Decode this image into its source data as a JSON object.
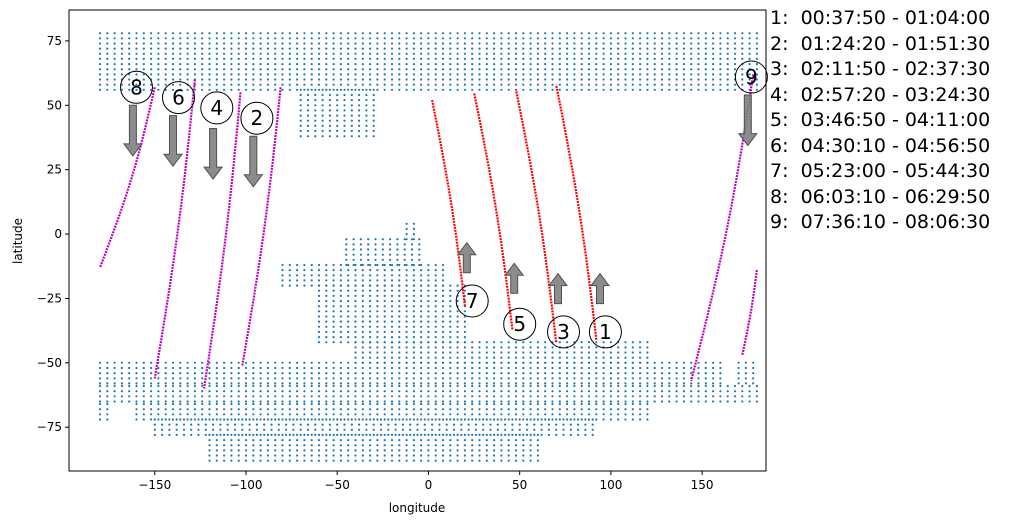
{
  "chart_data": {
    "type": "scatter",
    "title": "",
    "xlabel": "longitude",
    "ylabel": "latitude",
    "xlim": [
      -197,
      185
    ],
    "ylim": [
      -92,
      87
    ],
    "xticks": [
      -150,
      -100,
      -50,
      0,
      50,
      100,
      150
    ],
    "yticks": [
      -75,
      -50,
      -25,
      0,
      25,
      50,
      75
    ],
    "grid": false,
    "colors": {
      "land": "#1f77b4",
      "ascending": "#ff0000",
      "descending": "#c000c0",
      "arrow": "#808080"
    },
    "land_point_spacing_deg": [
      4,
      2
    ],
    "land_regions": [
      {
        "lat_range": [
          56,
          78
        ],
        "lon_spans": [
          [
            -180,
            180
          ]
        ]
      },
      {
        "lat_range": [
          38,
          56
        ],
        "lon_spans": [
          [
            -70,
            -30
          ]
        ]
      },
      {
        "lat_range": [
          -2,
          4
        ],
        "lon_spans": [
          [
            -12,
            -6
          ]
        ]
      },
      {
        "lat_range": [
          -12,
          -2
        ],
        "lon_spans": [
          [
            -45,
            -5
          ]
        ]
      },
      {
        "lat_range": [
          -20,
          -12
        ],
        "lon_spans": [
          [
            -80,
            10
          ]
        ]
      },
      {
        "lat_range": [
          -42,
          -20
        ],
        "lon_spans": [
          [
            -60,
            20
          ]
        ]
      },
      {
        "lat_range": [
          -50,
          -42
        ],
        "lon_spans": [
          [
            -40,
            120
          ]
        ]
      },
      {
        "lat_range": [
          -58,
          -50
        ],
        "lon_spans": [
          [
            -180,
            160
          ],
          [
            170,
            180
          ]
        ]
      },
      {
        "lat_range": [
          -65,
          -58
        ],
        "lon_spans": [
          [
            -180,
            180
          ]
        ]
      },
      {
        "lat_range": [
          -72,
          -65
        ],
        "lon_spans": [
          [
            -180,
            -175
          ],
          [
            -160,
            120
          ]
        ]
      },
      {
        "lat_range": [
          -78,
          -72
        ],
        "lon_spans": [
          [
            -150,
            90
          ]
        ]
      },
      {
        "lat_range": [
          -88,
          -78
        ],
        "lon_spans": [
          [
            -120,
            60
          ]
        ]
      }
    ],
    "passes": [
      {
        "id": "1",
        "time": "00:37:50 - 01:04:00",
        "direction": "ascending",
        "start": [
          92,
          -41
        ],
        "end": [
          70,
          58
        ],
        "arrow_from": [
          94,
          -27
        ],
        "arrow_to": [
          94,
          -20
        ],
        "label_at": [
          97,
          -38
        ]
      },
      {
        "id": "2",
        "time": "01:24:20 - 01:51:30",
        "direction": "descending",
        "start": [
          -81,
          57
        ],
        "end": [
          -102,
          -51
        ],
        "arrow_from": [
          -96,
          38
        ],
        "arrow_to": [
          -96,
          23
        ],
        "label_at": [
          -94,
          45
        ]
      },
      {
        "id": "3",
        "time": "02:11:50 - 02:37:30",
        "direction": "ascending",
        "start": [
          70,
          -42
        ],
        "end": [
          48,
          56
        ],
        "arrow_from": [
          71,
          -27
        ],
        "arrow_to": [
          71,
          -20
        ],
        "label_at": [
          74,
          -38
        ]
      },
      {
        "id": "4",
        "time": "02:57:20 - 03:24:30",
        "direction": "descending",
        "start": [
          -103,
          55
        ],
        "end": [
          -123,
          -60
        ],
        "arrow_from": [
          -118,
          41
        ],
        "arrow_to": [
          -118,
          26
        ],
        "label_at": [
          -116,
          49
        ]
      },
      {
        "id": "5",
        "time": "03:46:50 - 04:11:00",
        "direction": "ascending",
        "start": [
          46,
          -37
        ],
        "end": [
          25,
          55
        ],
        "arrow_from": [
          47,
          -23
        ],
        "arrow_to": [
          47,
          -16
        ],
        "label_at": [
          50,
          -35
        ]
      },
      {
        "id": "6",
        "time": "04:30:10 - 04:56:50",
        "direction": "descending",
        "start": [
          -128,
          60
        ],
        "end": [
          -150,
          -56
        ],
        "arrow_from": [
          -140,
          46
        ],
        "arrow_to": [
          -140,
          31
        ],
        "label_at": [
          -137,
          53
        ]
      },
      {
        "id": "7",
        "time": "05:23:00 - 05:44:30",
        "direction": "ascending",
        "start": [
          20,
          -28
        ],
        "end": [
          2,
          52
        ],
        "arrow_from": [
          21,
          -15
        ],
        "arrow_to": [
          21,
          -8
        ],
        "label_at": [
          24,
          -26
        ]
      },
      {
        "id": "8",
        "time": "06:03:10 - 06:29:50",
        "direction": "descending",
        "start": [
          -150,
          57
        ],
        "end": [
          -180,
          -13
        ],
        "arrow_from": [
          -162,
          50
        ],
        "arrow_to": [
          -162,
          35
        ],
        "label_at": [
          -160,
          57
        ]
      },
      {
        "id": "9",
        "time": "07:36:10 - 08:06:30",
        "direction": "descending",
        "start": [
          178,
          62
        ],
        "end": [
          144,
          -57
        ],
        "arrow_from": [
          175,
          54
        ],
        "arrow_to": [
          175,
          39
        ],
        "label_at": [
          177,
          61
        ]
      }
    ],
    "extra_tracks": [
      {
        "direction": "descending",
        "start": [
          180,
          -14
        ],
        "end": [
          172,
          -47
        ]
      }
    ]
  }
}
